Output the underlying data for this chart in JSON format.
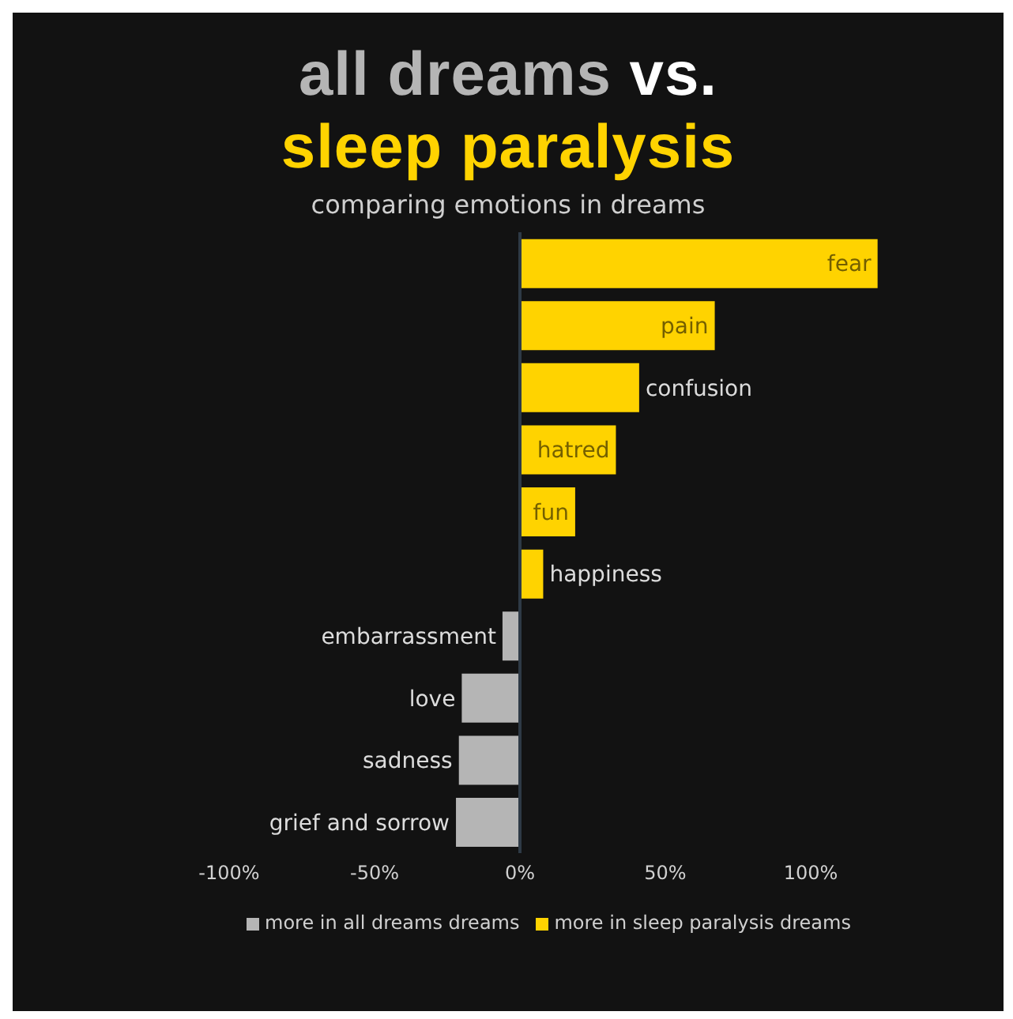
{
  "chart_data": {
    "type": "bar",
    "orientation": "horizontal",
    "title": "all dreams vs. sleep paralysis",
    "subtitle": "comparing emotions in dreams",
    "categories": [
      "fear",
      "pain",
      "confusion",
      "hatred",
      "fun",
      "happiness",
      "embarrassment",
      "love",
      "sadness",
      "grief and sorrow"
    ],
    "series": [
      {
        "name": "more in all dreams dreams",
        "color": "#b5b5b5",
        "values": [
          null,
          null,
          null,
          null,
          null,
          null,
          -6,
          -20,
          -21,
          -22
        ]
      },
      {
        "name": "more in sleep paralysis dreams",
        "color": "#ffd300",
        "values": [
          123,
          67,
          41,
          33,
          19,
          8,
          null,
          null,
          null,
          null
        ]
      }
    ],
    "xlim": [
      -100,
      125
    ],
    "xticks": [
      {
        "value": -100,
        "label": "-100%"
      },
      {
        "value": -50,
        "label": "-50%"
      },
      {
        "value": 0,
        "label": "0%"
      },
      {
        "value": 50,
        "label": "50%"
      },
      {
        "value": 100,
        "label": "100%"
      }
    ],
    "legend": "bottom",
    "ref_lines": [
      {
        "axis": "x",
        "value": 0,
        "color": "#2e3a46"
      }
    ]
  }
}
